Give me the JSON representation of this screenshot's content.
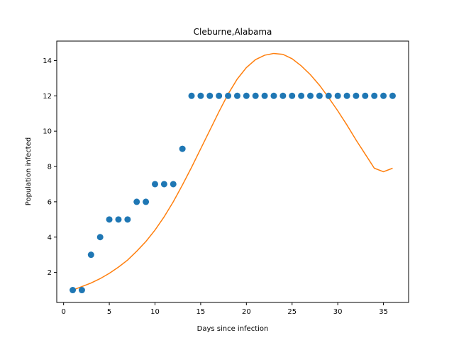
{
  "chart_data": {
    "type": "scatter",
    "title": "Cleburne,Alabama",
    "xlabel": "Days since infection",
    "ylabel": "Population infected",
    "xlim": [
      -0.75,
      37.75
    ],
    "ylim": [
      0.3,
      15.1
    ],
    "xticks": [
      0,
      5,
      10,
      15,
      20,
      25,
      30,
      35
    ],
    "yticks": [
      2,
      4,
      6,
      8,
      10,
      12,
      14
    ],
    "grid": false,
    "series": [
      {
        "kind": "scatter",
        "color": "#1f77b4",
        "x": [
          1,
          2,
          3,
          4,
          5,
          6,
          7,
          8,
          9,
          10,
          11,
          12,
          13,
          14,
          15,
          16,
          17,
          18,
          19,
          20,
          21,
          22,
          23,
          24,
          25,
          26,
          27,
          28,
          29,
          30,
          31,
          32,
          33,
          34,
          35,
          36
        ],
        "y": [
          1,
          1,
          3,
          4,
          5,
          5,
          5,
          6,
          6,
          7,
          7,
          7,
          9,
          12,
          12,
          12,
          12,
          12,
          12,
          12,
          12,
          12,
          12,
          12,
          12,
          12,
          12,
          12,
          12,
          12,
          12,
          12,
          12,
          12,
          12,
          12
        ]
      },
      {
        "kind": "line",
        "color": "#ff7f0e",
        "x": [
          1,
          2,
          3,
          4,
          5,
          6,
          7,
          8,
          9,
          10,
          11,
          12,
          13,
          14,
          15,
          16,
          17,
          18,
          19,
          20,
          21,
          22,
          23,
          24,
          25,
          26,
          27,
          28,
          29,
          30,
          31,
          32,
          33,
          34,
          35,
          36
        ],
        "y": [
          1.0,
          1.2,
          1.4,
          1.65,
          1.95,
          2.3,
          2.7,
          3.2,
          3.75,
          4.4,
          5.15,
          6.0,
          6.95,
          7.95,
          9.0,
          10.05,
          11.1,
          12.1,
          12.95,
          13.6,
          14.05,
          14.3,
          14.4,
          14.35,
          14.1,
          13.7,
          13.2,
          12.6,
          11.9,
          11.15,
          10.35,
          9.5,
          8.7,
          7.9,
          7.7,
          7.9
        ]
      }
    ]
  }
}
